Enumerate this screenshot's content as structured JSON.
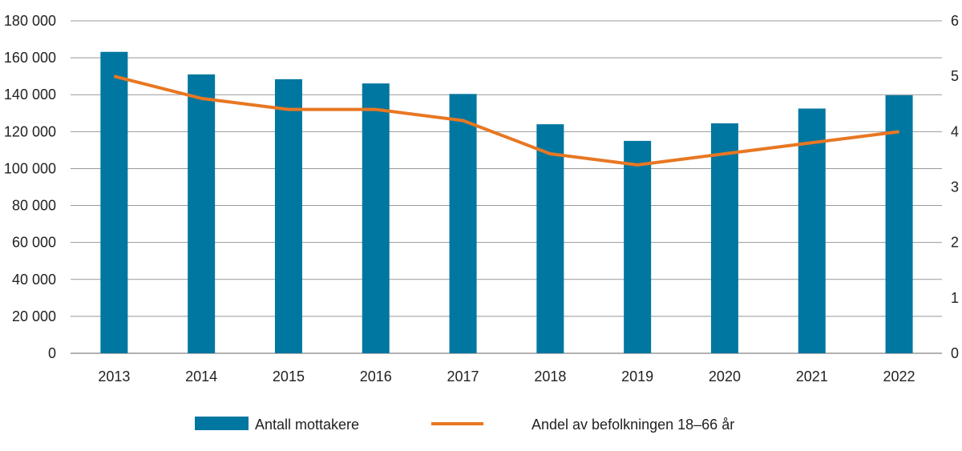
{
  "chart_data": {
    "type": "bar+line",
    "categories": [
      "2013",
      "2014",
      "2015",
      "2016",
      "2017",
      "2018",
      "2019",
      "2020",
      "2021",
      "2022"
    ],
    "series": [
      {
        "name": "Antall mottakere",
        "type": "bar",
        "axis": "left",
        "color": "#0077a0",
        "values": [
          163200,
          151000,
          148400,
          146100,
          140400,
          124000,
          115000,
          124500,
          132500,
          139700
        ]
      },
      {
        "name": "Andel av befolkningen 18–66 år",
        "type": "line",
        "axis": "right",
        "color": "#e87722",
        "values": [
          5.0,
          4.6,
          4.4,
          4.4,
          4.2,
          3.6,
          3.4,
          3.6,
          3.8,
          4.0
        ]
      }
    ],
    "left_axis": {
      "range": [
        0,
        180000
      ],
      "ticks": [
        "0",
        "20 000",
        "40 000",
        "60 000",
        "80 000",
        "100 000",
        "120 000",
        "140 000",
        "160 000",
        "180 000"
      ]
    },
    "right_axis": {
      "range": [
        0,
        6
      ],
      "ticks": [
        "0",
        "1",
        "2",
        "3",
        "4",
        "5",
        "6"
      ]
    },
    "grid": true,
    "legend": "bottom"
  }
}
